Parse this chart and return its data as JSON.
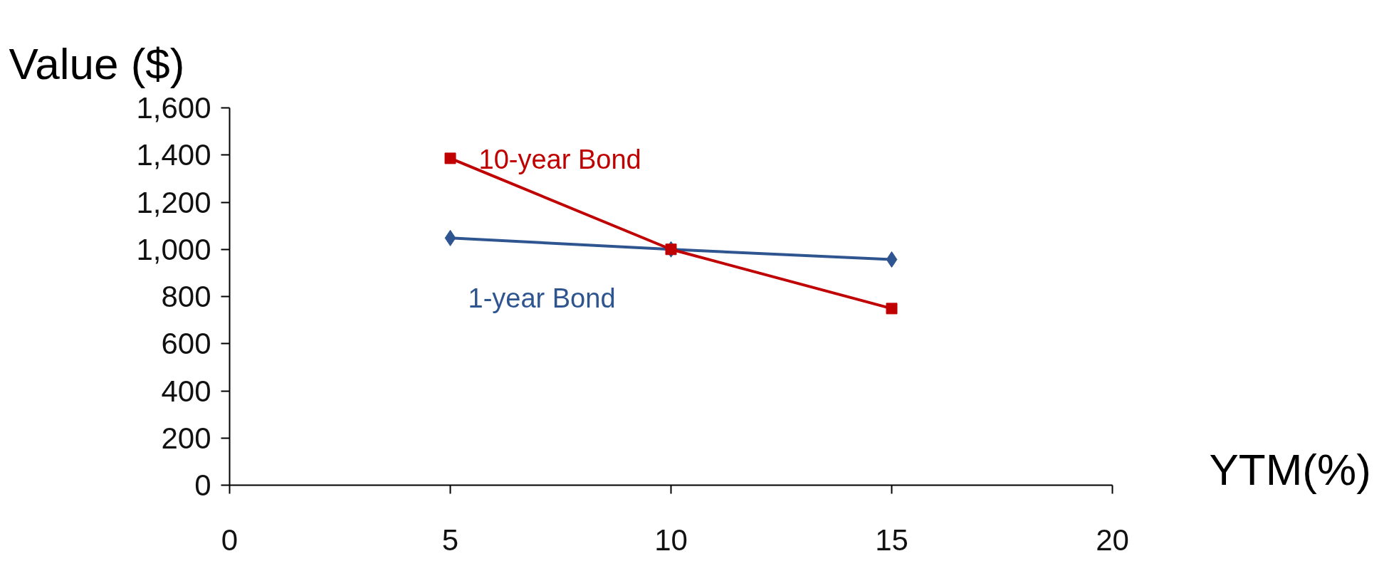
{
  "chart_data": {
    "type": "line",
    "ylabel": "Value ($)",
    "xlabel": "YTM(%)",
    "x": [
      5,
      10,
      15
    ],
    "series": [
      {
        "name": "1-year Bond",
        "color": "#2e5590",
        "values": [
          1048,
          1000,
          957
        ],
        "marker": "diamond"
      },
      {
        "name": "10-year Bond",
        "color": "#c00000",
        "values": [
          1386,
          1000,
          749
        ],
        "marker": "square"
      }
    ],
    "xlim": [
      0,
      20
    ],
    "xticks": [
      0,
      5,
      10,
      15,
      20
    ],
    "ylim": [
      0,
      1600
    ],
    "yticks": [
      0,
      {
        "value": 200,
        "label": "200"
      },
      {
        "value": 400,
        "label": "400"
      },
      {
        "value": 600,
        "label": "600"
      },
      {
        "value": 800,
        "label": "800"
      },
      {
        "value": 1000,
        "label": "1,000"
      },
      {
        "value": 1200,
        "label": "1,200"
      },
      {
        "value": 1400,
        "label": "1,400"
      },
      {
        "value": 1600,
        "label": "1,600"
      }
    ],
    "grid": false
  }
}
